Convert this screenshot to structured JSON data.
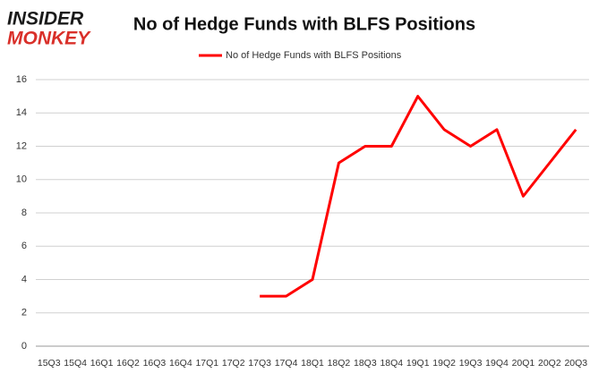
{
  "logo": {
    "line1": "INSIDER",
    "line2": "MONKEY"
  },
  "chart_data": {
    "type": "line",
    "title": "No of Hedge Funds with BLFS Positions",
    "categories": [
      "15Q3",
      "15Q4",
      "16Q1",
      "16Q2",
      "16Q3",
      "16Q4",
      "17Q1",
      "17Q2",
      "17Q3",
      "17Q4",
      "18Q1",
      "18Q2",
      "18Q3",
      "18Q4",
      "19Q1",
      "19Q2",
      "19Q3",
      "19Q4",
      "20Q1",
      "20Q2",
      "20Q3"
    ],
    "series": [
      {
        "name": "No of Hedge Funds with BLFS Positions",
        "color": "#ff0000",
        "values": [
          null,
          null,
          null,
          null,
          null,
          null,
          null,
          null,
          3,
          3,
          4,
          11,
          12,
          12,
          15,
          13,
          12,
          13,
          9,
          11,
          13
        ]
      }
    ],
    "ylim": [
      0,
      16
    ],
    "yticks": [
      0,
      2,
      4,
      6,
      8,
      10,
      12,
      14,
      16
    ],
    "grid": true,
    "legend": "top"
  }
}
